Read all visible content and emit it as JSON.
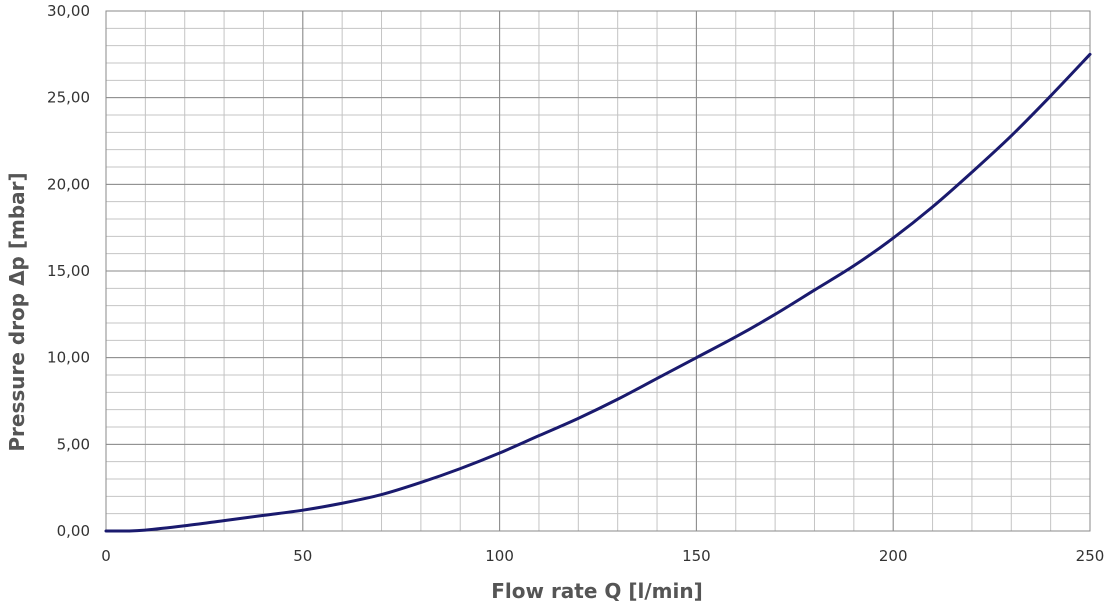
{
  "chart_data": {
    "type": "line",
    "title": "",
    "xlabel": "Flow rate Q [l/min]",
    "ylabel": "Pressure drop Δp [mbar]",
    "xlim": [
      0,
      250
    ],
    "ylim": [
      0,
      30
    ],
    "x_ticks": [
      0,
      50,
      100,
      150,
      200,
      250
    ],
    "x_tick_labels": [
      "0",
      "50",
      "100",
      "150",
      "200",
      "250"
    ],
    "y_ticks": [
      0,
      5,
      10,
      15,
      20,
      25,
      30
    ],
    "y_tick_labels": [
      "0,00",
      "5,00",
      "10,00",
      "15,00",
      "20,00",
      "25,00",
      "30,00"
    ],
    "x_minor_step": 10,
    "y_minor_step": 1,
    "grid": true,
    "series": [
      {
        "color": "#1a1a6e",
        "x": [
          0,
          5,
          10,
          20,
          30,
          40,
          50,
          60,
          70,
          80,
          90,
          100,
          110,
          120,
          130,
          140,
          150,
          160,
          170,
          180,
          190,
          200,
          210,
          220,
          230,
          240,
          250
        ],
        "y": [
          0.0,
          0.0,
          0.05,
          0.3,
          0.6,
          0.9,
          1.2,
          1.6,
          2.1,
          2.8,
          3.6,
          4.5,
          5.5,
          6.5,
          7.6,
          8.8,
          10.0,
          11.2,
          12.5,
          13.9,
          15.3,
          16.9,
          18.7,
          20.7,
          22.8,
          25.1,
          27.5
        ]
      }
    ]
  }
}
